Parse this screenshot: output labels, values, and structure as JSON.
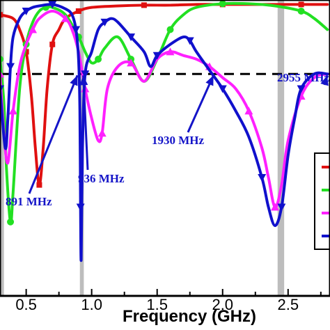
{
  "chart_data": {
    "type": "line",
    "xlabel": "Frequency (GHz)",
    "x_tick_labels": [
      "0.5",
      "1.0",
      "1.5",
      "2.0",
      "2.5"
    ],
    "x_ticks": [
      0.5,
      1.0,
      1.5,
      2.0,
      2.5
    ],
    "xlim": [
      0.3,
      2.82
    ],
    "ylim": [
      -40,
      0
    ],
    "reference_line": -10,
    "grey_bands": [
      [
        0.3,
        0.33
      ],
      [
        0.91,
        0.94
      ],
      [
        2.42,
        2.47
      ]
    ],
    "colors": {
      "red": "#e01010",
      "green": "#22e022",
      "magenta": "#ff20ff",
      "blue": "#1010cc",
      "annotation": "#1414c8"
    },
    "annotations": [
      {
        "text": "891 MHz",
        "arrow_to_x": 0.891
      },
      {
        "text": "936 MHz",
        "arrow_to_x": 0.936
      },
      {
        "text": "1930 MHz",
        "arrow_to_x": 1.93
      },
      {
        "text": "2955 MHz",
        "arrow_to_x": 2.955
      }
    ],
    "series": [
      {
        "color": "red",
        "marker": "square",
        "x": [
          0.3,
          0.4,
          0.45,
          0.5,
          0.54,
          0.57,
          0.6,
          0.63,
          0.66,
          0.7,
          0.75,
          0.8,
          0.9,
          1.0,
          1.2,
          1.4,
          1.6,
          1.8,
          2.0,
          2.2,
          2.4,
          2.6,
          2.8
        ],
        "y": [
          -2.0,
          -2.5,
          -4.0,
          -7.0,
          -13.0,
          -20.0,
          -25.0,
          -20.0,
          -12.0,
          -6.0,
          -4.0,
          -2.5,
          -1.5,
          -1.0,
          -0.8,
          -0.7,
          -0.7,
          -0.6,
          -0.6,
          -0.6,
          -0.6,
          -0.6,
          -0.6
        ]
      },
      {
        "color": "green",
        "marker": "circle",
        "x": [
          0.3,
          0.33,
          0.35,
          0.38,
          0.4,
          0.45,
          0.5,
          0.55,
          0.6,
          0.65,
          0.7,
          0.8,
          0.9,
          0.95,
          1.0,
          1.05,
          1.1,
          1.2,
          1.3,
          1.4,
          1.5,
          1.6,
          1.7,
          1.8,
          2.0,
          2.2,
          2.4,
          2.6,
          2.7,
          2.8
        ],
        "y": [
          -8.0,
          -14.0,
          -23.0,
          -30.0,
          -26.0,
          -12.0,
          -6.0,
          -3.0,
          -1.5,
          -1.0,
          -1.0,
          -2.0,
          -5.0,
          -7.0,
          -8.5,
          -8.0,
          -6.5,
          -5.0,
          -8.0,
          -11.0,
          -8.0,
          -4.0,
          -2.0,
          -1.0,
          -0.5,
          -0.5,
          -0.8,
          -1.5,
          -2.5,
          -4.0
        ]
      },
      {
        "color": "magenta",
        "marker": "triangle-up",
        "x": [
          0.3,
          0.33,
          0.36,
          0.4,
          0.45,
          0.5,
          0.55,
          0.6,
          0.7,
          0.8,
          0.85,
          0.9,
          0.95,
          1.0,
          1.05,
          1.08,
          1.12,
          1.2,
          1.3,
          1.4,
          1.5,
          1.6,
          1.7,
          1.8,
          1.9,
          2.0,
          2.1,
          2.2,
          2.3,
          2.35,
          2.4,
          2.45,
          2.5,
          2.6,
          2.7,
          2.8
        ],
        "y": [
          -10.0,
          -18.0,
          -22.0,
          -15.0,
          -9.0,
          -6.0,
          -4.0,
          -2.5,
          -1.5,
          -2.5,
          -4.0,
          -7.0,
          -12.0,
          -16.0,
          -19.0,
          -18.0,
          -12.0,
          -9.0,
          -8.5,
          -11.0,
          -8.0,
          -7.0,
          -7.5,
          -8.0,
          -9.0,
          -10.5,
          -12.0,
          -15.0,
          -20.0,
          -24.0,
          -28.0,
          -25.0,
          -19.0,
          -13.0,
          -10.5,
          -10.0
        ]
      },
      {
        "color": "blue",
        "marker": "triangle-down",
        "x": [
          0.3,
          0.34,
          0.36,
          0.38,
          0.4,
          0.45,
          0.5,
          0.55,
          0.6,
          0.7,
          0.8,
          0.85,
          0.88,
          0.9,
          0.91,
          0.915,
          0.92,
          0.93,
          0.95,
          1.0,
          1.05,
          1.1,
          1.15,
          1.2,
          1.3,
          1.4,
          1.45,
          1.5,
          1.6,
          1.7,
          1.75,
          1.8,
          1.9,
          2.0,
          2.1,
          2.2,
          2.3,
          2.35,
          2.4,
          2.45,
          2.5,
          2.55,
          2.6,
          2.7,
          2.8
        ],
        "y": [
          -12.0,
          -20.0,
          -16.0,
          -9.0,
          -5.0,
          -2.5,
          -1.5,
          -1.0,
          -0.8,
          -0.6,
          -1.2,
          -2.0,
          -4.0,
          -8.0,
          -15.0,
          -28.0,
          -35.0,
          -20.0,
          -10.0,
          -7.0,
          -4.0,
          -3.0,
          -2.5,
          -3.0,
          -5.0,
          -7.0,
          -9.0,
          -7.5,
          -6.0,
          -5.0,
          -5.5,
          -7.0,
          -9.5,
          -12.0,
          -15.0,
          -18.5,
          -24.0,
          -28.0,
          -30.5,
          -28.0,
          -21.0,
          -16.0,
          -12.0,
          -10.0,
          -10.0
        ]
      }
    ]
  }
}
